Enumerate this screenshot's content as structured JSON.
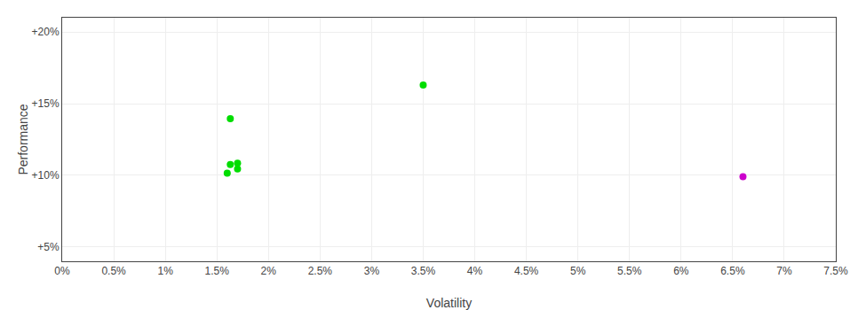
{
  "chart_data": {
    "type": "scatter",
    "xlabel": "Volatility",
    "ylabel": "Performance",
    "xlim": [
      0.0,
      0.075
    ],
    "ylim": [
      0.04,
      0.21
    ],
    "xticks": [
      {
        "value": 0.0,
        "label": "0%"
      },
      {
        "value": 0.005,
        "label": "0.5%"
      },
      {
        "value": 0.01,
        "label": "1%"
      },
      {
        "value": 0.015,
        "label": "1.5%"
      },
      {
        "value": 0.02,
        "label": "2%"
      },
      {
        "value": 0.025,
        "label": "2.5%"
      },
      {
        "value": 0.03,
        "label": "3%"
      },
      {
        "value": 0.035,
        "label": "3.5%"
      },
      {
        "value": 0.04,
        "label": "4%"
      },
      {
        "value": 0.045,
        "label": "4.5%"
      },
      {
        "value": 0.05,
        "label": "5%"
      },
      {
        "value": 0.055,
        "label": "5.5%"
      },
      {
        "value": 0.06,
        "label": "6%"
      },
      {
        "value": 0.065,
        "label": "6.5%"
      },
      {
        "value": 0.07,
        "label": "7%"
      },
      {
        "value": 0.075,
        "label": "7.5%"
      }
    ],
    "yticks": [
      {
        "value": 0.05,
        "label": "+5%"
      },
      {
        "value": 0.1,
        "label": "+10%"
      },
      {
        "value": 0.15,
        "label": "+15%"
      },
      {
        "value": 0.2,
        "label": "+20%"
      }
    ],
    "grid": true,
    "series": [
      {
        "color": "#00dd00",
        "x": [
          0.0163,
          0.035,
          0.0163,
          0.017,
          0.017,
          0.016
        ],
        "values": [
          0.1395,
          0.163,
          0.1075,
          0.1085,
          0.1045,
          0.1015
        ]
      },
      {
        "color": "#cc00cc",
        "x": [
          0.066
        ],
        "values": [
          0.099
        ]
      }
    ]
  }
}
